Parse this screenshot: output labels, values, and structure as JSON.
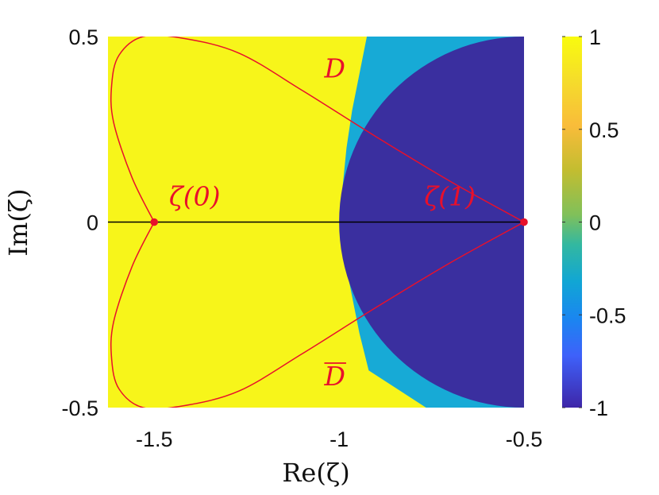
{
  "chart_data": {
    "type": "heatmap",
    "title": "",
    "xlabel": "Re(ζ)",
    "ylabel": "Im(ζ)",
    "xlim": [
      -1.625,
      -0.5
    ],
    "ylim": [
      -0.5,
      0.5
    ],
    "x_ticks": [
      {
        "value": -1.5,
        "label": "-1.5"
      },
      {
        "value": -1.0,
        "label": "-1"
      },
      {
        "value": -0.5,
        "label": "-0.5"
      }
    ],
    "y_ticks": [
      {
        "value": 0.5,
        "label": "0.5"
      },
      {
        "value": 0,
        "label": "0"
      },
      {
        "value": -0.5,
        "label": "-0.5"
      }
    ],
    "colorbar": {
      "range": [
        -1,
        1
      ],
      "ticks": [
        {
          "value": 1,
          "label": "1"
        },
        {
          "value": 0.5,
          "label": "0.5"
        },
        {
          "value": 0,
          "label": "0"
        },
        {
          "value": -0.5,
          "label": "-0.5"
        },
        {
          "value": -1,
          "label": "-1"
        }
      ],
      "colormap": "parula"
    },
    "regions": [
      {
        "level": 1,
        "color": "#f7f51a"
      },
      {
        "level": -0.2,
        "color": "#17aad6"
      },
      {
        "level": -1,
        "color": "#3a2f9f"
      }
    ],
    "dark_disk": {
      "center": [
        -0.5,
        0
      ],
      "radius": 0.5
    },
    "light_band_boundary": [
      [
        -1.0,
        0
      ],
      [
        -0.99,
        0.1
      ],
      [
        -0.98,
        0.2
      ],
      [
        -0.965,
        0.3
      ],
      [
        -0.945,
        0.4
      ],
      [
        -0.925,
        0.5
      ]
    ],
    "light_band_lower_boundary": [
      [
        -1.0,
        0
      ],
      [
        -0.985,
        -0.1
      ],
      [
        -0.965,
        -0.2
      ],
      [
        -0.945,
        -0.3
      ],
      [
        -0.92,
        -0.4
      ],
      [
        -0.765,
        -0.5
      ]
    ],
    "curve_upper": [
      [
        -1.5,
        0
      ],
      [
        -1.56,
        0.12
      ],
      [
        -1.61,
        0.27
      ],
      [
        -1.615,
        0.37
      ],
      [
        -1.595,
        0.45
      ],
      [
        -1.53,
        0.5
      ],
      [
        -1.42,
        0.495
      ],
      [
        -1.27,
        0.455
      ],
      [
        -1.1,
        0.355
      ],
      [
        -0.9,
        0.23
      ],
      [
        -0.7,
        0.11
      ],
      [
        -0.5,
        0
      ]
    ],
    "real_axis_line": [
      [
        -1.625,
        0
      ],
      [
        -0.5,
        0
      ]
    ],
    "points": [
      {
        "name": "ζ(0)",
        "x": -1.5,
        "y": 0
      },
      {
        "name": "ζ(1)",
        "x": -0.5,
        "y": 0
      }
    ],
    "annotations": [
      {
        "text": "D",
        "x": -1.04,
        "y": 0.39
      },
      {
        "text": "ζ(0)",
        "x": -1.46,
        "y": 0.045
      },
      {
        "text": "ζ(1)",
        "x": -0.77,
        "y": 0.045
      },
      {
        "text": "D",
        "x": -1.04,
        "y": -0.44,
        "overline": true
      }
    ],
    "colors": {
      "curve": "#e8102b",
      "axis_line": "#000000"
    }
  }
}
